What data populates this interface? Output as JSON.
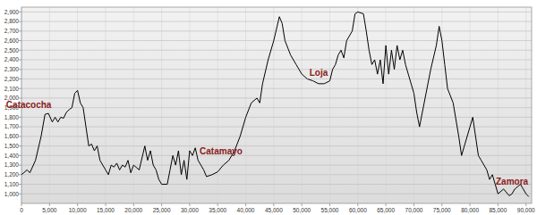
{
  "chart_data": {
    "type": "line",
    "color": "#000000",
    "grid": true,
    "x": [
      0,
      1000,
      1500,
      2500,
      3500,
      4200,
      4800,
      5500,
      6000,
      6500,
      7000,
      7500,
      8000,
      8500,
      9000,
      9500,
      10000,
      10500,
      11000,
      11500,
      12000,
      12500,
      13000,
      13500,
      14000,
      14500,
      15000,
      15500,
      16000,
      16500,
      17000,
      17500,
      18000,
      18500,
      19000,
      19500,
      20000,
      21000,
      22000,
      22500,
      23000,
      23500,
      24000,
      24500,
      25000,
      26000,
      26500,
      27000,
      27500,
      28000,
      28500,
      29000,
      29500,
      30000,
      30500,
      31000,
      31500,
      32000,
      32500,
      33000,
      34000,
      35000,
      36000,
      37000,
      38000,
      39000,
      40000,
      41000,
      42000,
      42500,
      43000,
      44000,
      45000,
      46000,
      46500,
      47000,
      48000,
      49000,
      50000,
      51000,
      52000,
      53000,
      54000,
      55000,
      55500,
      56000,
      56500,
      57000,
      57500,
      58000,
      59000,
      59500,
      60000,
      61000,
      61500,
      62000,
      62500,
      63000,
      63500,
      64000,
      64500,
      65000,
      65500,
      66000,
      66500,
      67000,
      67500,
      68000,
      68500,
      69000,
      70000,
      70500,
      71000,
      71500,
      72000,
      73000,
      74000,
      74500,
      75000,
      75500,
      76000,
      77000,
      78000,
      78500,
      79000,
      80000,
      80500,
      81000,
      81500,
      82000,
      83000,
      83500,
      84000,
      84500,
      85000,
      86000,
      87000,
      87500,
      88000,
      89000,
      89500,
      90000,
      90500
    ],
    "values": [
      1200,
      1250,
      1220,
      1350,
      1600,
      1830,
      1840,
      1750,
      1800,
      1750,
      1800,
      1790,
      1850,
      1880,
      1900,
      2050,
      2080,
      1950,
      1900,
      1700,
      1500,
      1520,
      1450,
      1500,
      1350,
      1300,
      1250,
      1200,
      1300,
      1280,
      1320,
      1250,
      1300,
      1280,
      1350,
      1220,
      1300,
      1250,
      1500,
      1350,
      1450,
      1300,
      1250,
      1150,
      1100,
      1100,
      1250,
      1400,
      1300,
      1450,
      1200,
      1350,
      1150,
      1450,
      1400,
      1480,
      1350,
      1300,
      1250,
      1180,
      1200,
      1230,
      1300,
      1350,
      1450,
      1600,
      1800,
      1950,
      2000,
      1950,
      2150,
      2400,
      2600,
      2850,
      2780,
      2600,
      2450,
      2350,
      2250,
      2200,
      2180,
      2150,
      2150,
      2180,
      2300,
      2350,
      2450,
      2500,
      2420,
      2600,
      2700,
      2880,
      2900,
      2880,
      2700,
      2500,
      2350,
      2400,
      2250,
      2400,
      2150,
      2550,
      2250,
      2500,
      2300,
      2550,
      2400,
      2500,
      2350,
      2250,
      2050,
      1850,
      1700,
      1850,
      2000,
      2300,
      2550,
      2750,
      2600,
      2350,
      2100,
      1950,
      1600,
      1400,
      1500,
      1700,
      1800,
      1600,
      1400,
      1350,
      1250,
      1150,
      1200,
      1100,
      1000,
      1050,
      980,
      1000,
      1050,
      1100,
      1050,
      1000,
      970
    ],
    "xlim": [
      0,
      91000
    ],
    "ylim": [
      900,
      2950
    ],
    "xticks": [
      0,
      {
        "value": 5000,
        "label": "5,000"
      },
      {
        "value": 10000,
        "label": "10,000"
      },
      {
        "value": 15000,
        "label": "15,000"
      },
      {
        "value": 20000,
        "label": "20,000"
      },
      {
        "value": 25000,
        "label": "25,000"
      },
      {
        "value": 30000,
        "label": "30,000"
      },
      {
        "value": 35000,
        "label": "35,000"
      },
      {
        "value": 40000,
        "label": "40,000"
      },
      {
        "value": 45000,
        "label": "45,000"
      },
      {
        "value": 50000,
        "label": "50,000"
      },
      {
        "value": 55000,
        "label": "55,000"
      },
      {
        "value": 60000,
        "label": "60,000"
      },
      {
        "value": 65000,
        "label": "65,000"
      },
      {
        "value": 70000,
        "label": "70,000"
      },
      {
        "value": 75000,
        "label": "75,000"
      },
      {
        "value": 80000,
        "label": "80,000"
      },
      {
        "value": 85000,
        "label": "85,000"
      },
      {
        "value": 90000,
        "label": "90,000"
      }
    ],
    "yticks": [
      {
        "value": 1000,
        "label": "1,000"
      },
      {
        "value": 1100,
        "label": "1,100"
      },
      {
        "value": 1200,
        "label": "1,200"
      },
      {
        "value": 1300,
        "label": "1,300"
      },
      {
        "value": 1400,
        "label": "1,400"
      },
      {
        "value": 1500,
        "label": "1,500"
      },
      {
        "value": 1600,
        "label": "1,600"
      },
      {
        "value": 1700,
        "label": "1,700"
      },
      {
        "value": 1800,
        "label": "1,800"
      },
      {
        "value": 1900,
        "label": "1,900"
      },
      {
        "value": 2000,
        "label": "2,000"
      },
      {
        "value": 2100,
        "label": "2,100"
      },
      {
        "value": 2200,
        "label": "2,200"
      },
      {
        "value": 2300,
        "label": "2,300"
      },
      {
        "value": 2400,
        "label": "2,400"
      },
      {
        "value": 2500,
        "label": "2,500"
      },
      {
        "value": 2600,
        "label": "2,600"
      },
      {
        "value": 2700,
        "label": "2,700"
      },
      {
        "value": 2800,
        "label": "2,800"
      },
      {
        "value": 2900,
        "label": "2,900"
      }
    ],
    "annotations": [
      {
        "text": "Catacocha",
        "x": 1300,
        "y": 1900,
        "color": "#8b1a1a"
      },
      {
        "text": "Catamayo",
        "x": 35600,
        "y": 1410,
        "color": "#8b1a1a"
      },
      {
        "text": "Loja",
        "x": 53000,
        "y": 2230,
        "color": "#8b1a1a"
      },
      {
        "text": "Zamora",
        "x": 87500,
        "y": 1100,
        "color": "#8b1a1a"
      }
    ]
  }
}
